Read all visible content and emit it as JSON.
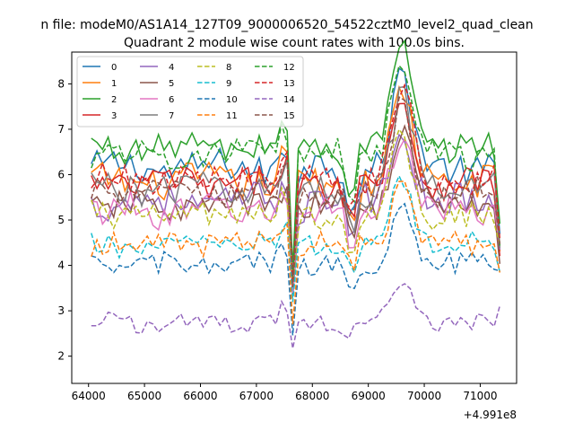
{
  "chart_data": {
    "type": "line",
    "suptitle": "n file: modeM0/AS1A14_127T09_9000006520_54522cztM0_level2_quad_clean",
    "title": "Quadrant 2 module wise count rates with 100.0s bins.",
    "xlabel": "",
    "ylabel": "",
    "x_offset_label": "+4.991e8",
    "xlim": [
      63700,
      71650
    ],
    "ylim": [
      1.4,
      8.7
    ],
    "xticks": [
      64000,
      65000,
      66000,
      67000,
      68000,
      69000,
      70000,
      71000
    ],
    "yticks": [
      2,
      3,
      4,
      5,
      6,
      7,
      8
    ],
    "x_range": [
      64050,
      71350
    ],
    "x_step": 100,
    "legend_position": "top-left",
    "legend_columns": 4,
    "colors": [
      "#1f77b4",
      "#ff7f0e",
      "#2ca02c",
      "#d62728",
      "#9467bd",
      "#8c564b",
      "#e377c2",
      "#7f7f7f",
      "#bcbd22",
      "#17becf"
    ],
    "series": [
      {
        "name": "0",
        "style": "solid",
        "base": 6.15,
        "amp": 0.35
      },
      {
        "name": "1",
        "style": "solid",
        "base": 5.85,
        "amp": 0.35
      },
      {
        "name": "2",
        "style": "solid",
        "base": 6.6,
        "amp": 0.3
      },
      {
        "name": "3",
        "style": "solid",
        "base": 5.8,
        "amp": 0.35
      },
      {
        "name": "4",
        "style": "solid",
        "base": 5.4,
        "amp": 0.35
      },
      {
        "name": "5",
        "style": "solid",
        "base": 5.3,
        "amp": 0.3
      },
      {
        "name": "6",
        "style": "solid",
        "base": 5.2,
        "amp": 0.35
      },
      {
        "name": "7",
        "style": "solid",
        "base": 5.7,
        "amp": 0.35
      },
      {
        "name": "8",
        "style": "dashed",
        "base": 5.1,
        "amp": 0.3
      },
      {
        "name": "9",
        "style": "dashed",
        "base": 4.45,
        "amp": 0.25
      },
      {
        "name": "10",
        "style": "dashed",
        "base": 4.0,
        "amp": 0.25
      },
      {
        "name": "11",
        "style": "dashed",
        "base": 4.5,
        "amp": 0.25
      },
      {
        "name": "12",
        "style": "dashed",
        "base": 6.45,
        "amp": 0.3
      },
      {
        "name": "13",
        "style": "dashed",
        "base": 5.9,
        "amp": 0.3
      },
      {
        "name": "14",
        "style": "dashed",
        "base": 2.75,
        "amp": 0.2
      },
      {
        "name": "15",
        "style": "dashed",
        "base": 5.6,
        "amp": 0.3
      }
    ],
    "features": [
      {
        "kind": "dip",
        "center": 67650,
        "depth_frac": 0.55,
        "width": 60
      },
      {
        "kind": "dip",
        "center": 68700,
        "depth_frac": 0.18,
        "width": 120
      },
      {
        "kind": "peak",
        "center": 69600,
        "height": 2.0,
        "width": 250
      },
      {
        "kind": "peak",
        "center": 67500,
        "height": 0.6,
        "width": 100
      }
    ]
  }
}
